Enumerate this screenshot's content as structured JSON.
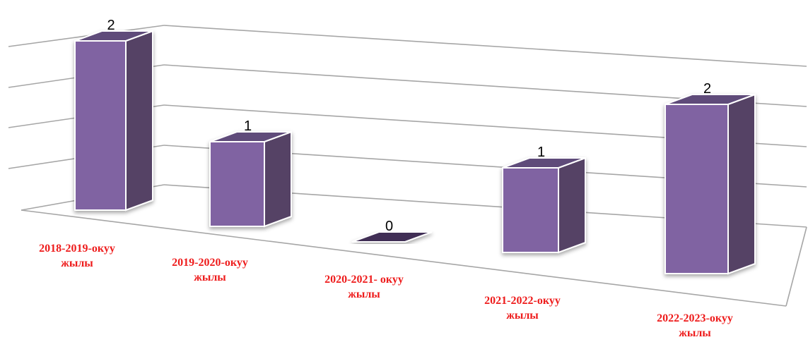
{
  "chart_data": {
    "type": "bar",
    "title": "",
    "xlabel": "",
    "ylabel": "",
    "ylim": [
      0,
      2
    ],
    "grid": true,
    "legend": "none",
    "categories": [
      [
        "2018-2019-окуу",
        "жылы"
      ],
      [
        "2019-2020-окуу",
        "жылы"
      ],
      [
        "2020-2021- окуу",
        "жылы"
      ],
      [
        "2021-2022-окуу",
        "жылы"
      ],
      [
        "2022-2023-окуу",
        "жылы"
      ]
    ],
    "values": [
      2,
      1,
      0,
      1,
      2
    ],
    "data_labels": [
      "2",
      "1",
      "0",
      "1",
      "2"
    ],
    "colors": {
      "bar_front": "#8064a2",
      "bar_side": "#544265",
      "bar_top": "#5f4b7a",
      "bar_outline": "#ffffff",
      "grid": "#a6a6a6",
      "category_text": "#ee1c1c",
      "value_text": "#000000"
    }
  }
}
